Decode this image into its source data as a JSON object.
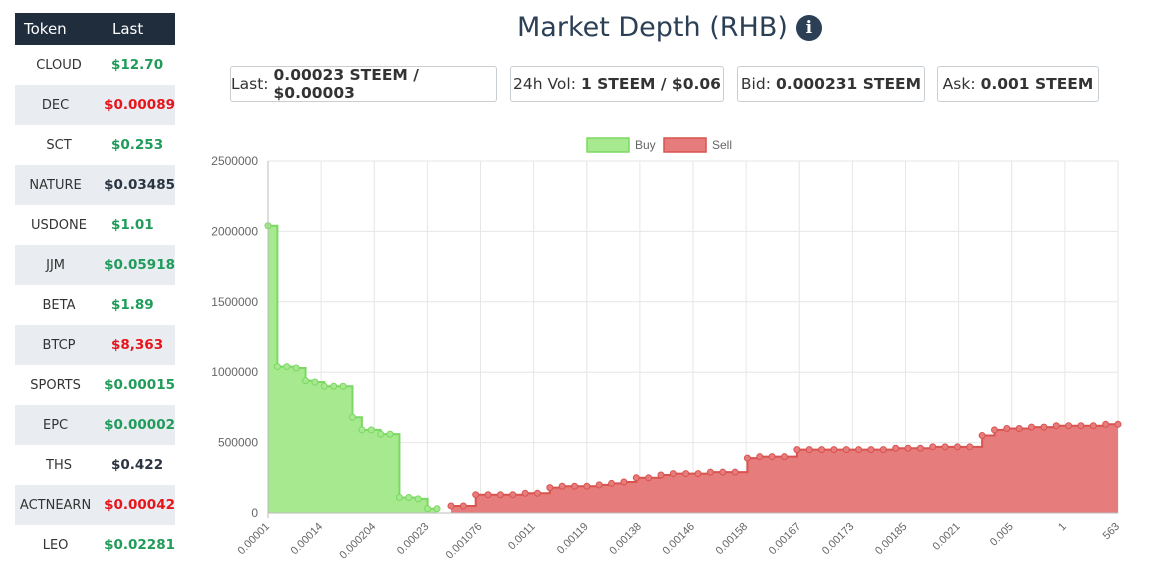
{
  "sidebar": {
    "headers": {
      "token": "Token",
      "last": "Last"
    },
    "rows": [
      {
        "token": "CLOUD",
        "last": "$12.70",
        "color": "green"
      },
      {
        "token": "DEC",
        "last": "$0.00089",
        "color": "red"
      },
      {
        "token": "SCT",
        "last": "$0.253",
        "color": "green"
      },
      {
        "token": "NATURE",
        "last": "$0.03485",
        "color": "dark"
      },
      {
        "token": "USDONE",
        "last": "$1.01",
        "color": "green"
      },
      {
        "token": "JJM",
        "last": "$0.05918",
        "color": "green"
      },
      {
        "token": "BETA",
        "last": "$1.89",
        "color": "green"
      },
      {
        "token": "BTCP",
        "last": "$8,363",
        "color": "red"
      },
      {
        "token": "SPORTS",
        "last": "$0.00015",
        "color": "green"
      },
      {
        "token": "EPC",
        "last": "$0.00002",
        "color": "green"
      },
      {
        "token": "THS",
        "last": "$0.422",
        "color": "dark"
      },
      {
        "token": "ACTNEARN",
        "last": "$0.00042",
        "color": "red"
      },
      {
        "token": "LEO",
        "last": "$0.02281",
        "color": "green"
      }
    ]
  },
  "header": {
    "title": "Market Depth (RHB)",
    "info_icon": "info-circle-icon"
  },
  "stats": {
    "last": {
      "label": "Last:",
      "value": "0.00023 STEEM / $0.00003"
    },
    "vol": {
      "label": "24h Vol:",
      "value": "1 STEEM / $0.06"
    },
    "bid": {
      "label": "Bid:",
      "value": "0.000231 STEEM"
    },
    "ask": {
      "label": "Ask:",
      "value": "0.001 STEEM"
    }
  },
  "colors": {
    "buy_fill": "#a6e98f",
    "buy_line": "#7bd862",
    "sell_fill": "#e67c7c",
    "sell_line": "#d9534f",
    "grid": "#e6e6e6"
  },
  "chart_data": {
    "type": "area",
    "ylim": [
      0,
      2500000
    ],
    "yticks": [
      "0",
      "500000",
      "1000000",
      "1500000",
      "2000000",
      "2500000"
    ],
    "xticks": [
      "0.00001",
      "0.00014",
      "0.000204",
      "0.00023",
      "0.001076",
      "0.0011",
      "0.00119",
      "0.00138",
      "0.00146",
      "0.00158",
      "0.00167",
      "0.00173",
      "0.00185",
      "0.0021",
      "0.005",
      "1",
      "563"
    ],
    "grid": true,
    "legend_position": "top",
    "series": [
      {
        "name": "Buy",
        "values": [
          2040000,
          1040000,
          1040000,
          1030000,
          940000,
          930000,
          900000,
          900000,
          900000,
          680000,
          590000,
          590000,
          560000,
          560000,
          110000,
          110000,
          100000,
          30000,
          30000
        ]
      },
      {
        "name": "Sell",
        "values": [
          50000,
          50000,
          130000,
          130000,
          130000,
          130000,
          140000,
          140000,
          180000,
          190000,
          190000,
          190000,
          200000,
          210000,
          220000,
          250000,
          250000,
          270000,
          280000,
          280000,
          280000,
          290000,
          290000,
          290000,
          390000,
          400000,
          400000,
          400000,
          450000,
          450000,
          450000,
          450000,
          450000,
          450000,
          450000,
          450000,
          460000,
          460000,
          460000,
          470000,
          470000,
          470000,
          470000,
          550000,
          590000,
          600000,
          600000,
          610000,
          610000,
          620000,
          620000,
          620000,
          620000,
          630000,
          630000
        ]
      }
    ]
  }
}
